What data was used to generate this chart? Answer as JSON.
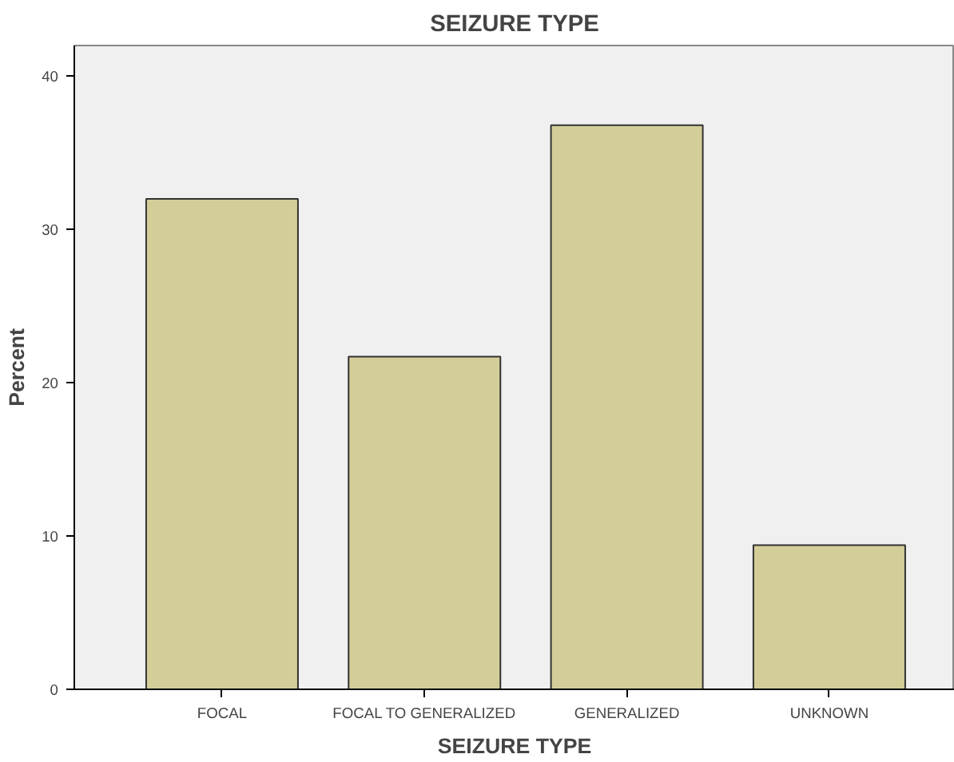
{
  "chart_data": {
    "type": "bar",
    "title": "SEIZURE TYPE",
    "xlabel": "SEIZURE TYPE",
    "ylabel": "Percent",
    "categories": [
      "FOCAL",
      "FOCAL TO GENERALIZED",
      "GENERALIZED",
      "UNKNOWN"
    ],
    "values": [
      32.0,
      21.7,
      36.8,
      9.4
    ],
    "color": "#d3ce98",
    "ylim": [
      0,
      42
    ],
    "yticks": [
      0,
      10,
      20,
      30,
      40
    ],
    "grid": false
  }
}
